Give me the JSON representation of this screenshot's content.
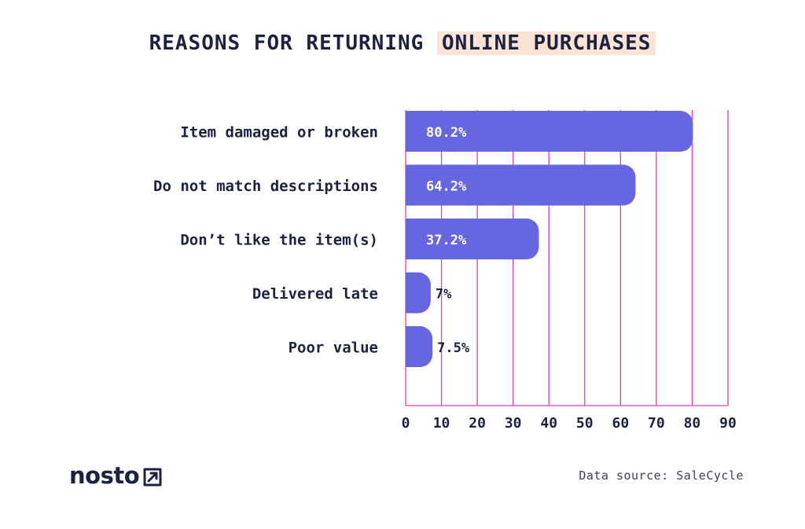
{
  "chart_data": {
    "type": "bar",
    "orientation": "horizontal",
    "title_part1": "REASONS FOR RETURNING ",
    "title_highlight": "ONLINE PURCHASES",
    "categories": [
      "Item damaged or broken",
      "Do not match descriptions",
      "Don’t like the item(s)",
      "Delivered late",
      "Poor value"
    ],
    "values": [
      80.2,
      64.2,
      37.2,
      7,
      7.5
    ],
    "value_labels": [
      "80.2%",
      "64.2%",
      "37.2%",
      "7%",
      "7.5%"
    ],
    "xlim": [
      0,
      90
    ],
    "xticks": [
      "0",
      "10",
      "20",
      "30",
      "40",
      "50",
      "60",
      "70",
      "80",
      "90"
    ],
    "grid": true,
    "bar_color": "#6666e0",
    "grid_color": "#e040b0"
  },
  "footer": {
    "logo_text": "nosto",
    "source": "Data source: SaleCycle"
  }
}
